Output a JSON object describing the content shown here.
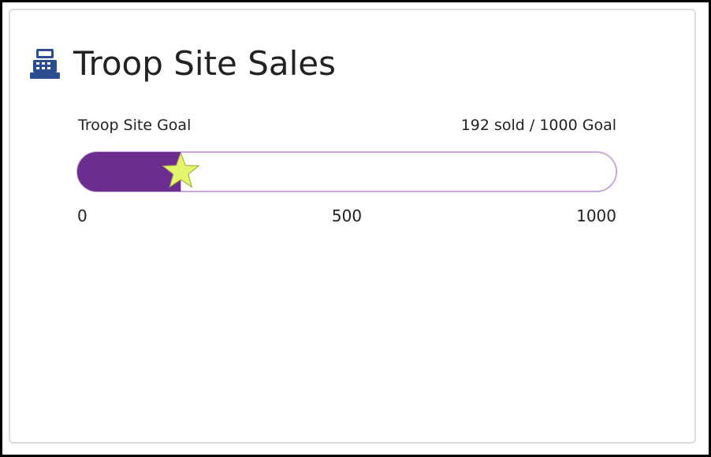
{
  "widget": {
    "title": "Troop Site Sales",
    "goal_label": "Troop Site Goal",
    "status": "192 sold / 1000 Goal",
    "progress": {
      "value": 192,
      "min": 0,
      "max": 1000,
      "ticks": [
        0,
        500,
        1000
      ],
      "color": "#6b2d8e",
      "star_color": "#e4f46c"
    }
  }
}
